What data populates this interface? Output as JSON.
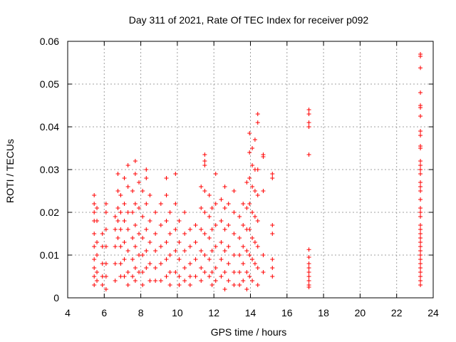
{
  "chart_data": {
    "type": "scatter",
    "title": "Day 311 of 2021, Rate Of TEC Index for receiver p092",
    "xlabel": "GPS time / hours",
    "ylabel": "ROTI / TECUs",
    "xlim": [
      4,
      24
    ],
    "ylim": [
      0,
      0.06
    ],
    "x_ticks": [
      "4",
      "6",
      "8",
      "10",
      "12",
      "14",
      "16",
      "18",
      "20",
      "22",
      "24"
    ],
    "y_ticks": [
      "0",
      "0.01",
      "0.02",
      "0.03",
      "0.04",
      "0.05",
      "0.06"
    ],
    "grid": true,
    "marker": "+",
    "color": "#ff0000",
    "series": [
      {
        "points": [
          [
            5.45,
            0.024
          ],
          [
            5.45,
            0.022
          ],
          [
            5.45,
            0.02
          ],
          [
            5.45,
            0.018
          ],
          [
            5.45,
            0.015
          ],
          [
            5.45,
            0.012
          ],
          [
            5.45,
            0.009
          ],
          [
            5.45,
            0.007
          ],
          [
            5.45,
            0.005
          ],
          [
            5.45,
            0.003
          ],
          [
            5.6,
            0.021
          ],
          [
            5.6,
            0.018
          ],
          [
            5.6,
            0.013
          ],
          [
            5.6,
            0.01
          ],
          [
            5.6,
            0.006
          ],
          [
            5.6,
            0.004
          ],
          [
            5.9,
            0.015
          ],
          [
            5.9,
            0.012
          ],
          [
            5.9,
            0.008
          ],
          [
            5.9,
            0.005
          ],
          [
            5.9,
            0.003
          ],
          [
            6.1,
            0.022
          ],
          [
            6.1,
            0.02
          ],
          [
            6.1,
            0.016
          ],
          [
            6.1,
            0.012
          ],
          [
            6.1,
            0.008
          ],
          [
            6.1,
            0.005
          ],
          [
            6.1,
            0.002
          ],
          [
            6.6,
            0.019
          ],
          [
            6.6,
            0.016
          ],
          [
            6.6,
            0.012
          ],
          [
            6.6,
            0.008
          ],
          [
            6.6,
            0.004
          ],
          [
            6.75,
            0.029
          ],
          [
            6.75,
            0.025
          ],
          [
            6.75,
            0.021
          ],
          [
            6.75,
            0.018
          ],
          [
            6.75,
            0.014
          ],
          [
            6.9,
            0.024
          ],
          [
            6.9,
            0.02
          ],
          [
            6.9,
            0.016
          ],
          [
            6.9,
            0.012
          ],
          [
            6.9,
            0.008
          ],
          [
            6.9,
            0.005
          ],
          [
            7.1,
            0.028
          ],
          [
            7.1,
            0.022
          ],
          [
            7.1,
            0.018
          ],
          [
            7.1,
            0.013
          ],
          [
            7.1,
            0.009
          ],
          [
            7.1,
            0.005
          ],
          [
            7.3,
            0.031
          ],
          [
            7.3,
            0.026
          ],
          [
            7.3,
            0.02
          ],
          [
            7.3,
            0.016
          ],
          [
            7.3,
            0.011
          ],
          [
            7.3,
            0.006
          ],
          [
            7.3,
            0.003
          ],
          [
            7.55,
            0.025
          ],
          [
            7.55,
            0.02
          ],
          [
            7.55,
            0.014
          ],
          [
            7.55,
            0.009
          ],
          [
            7.55,
            0.005
          ],
          [
            7.7,
            0.032
          ],
          [
            7.7,
            0.029
          ],
          [
            7.7,
            0.022
          ],
          [
            7.7,
            0.017
          ],
          [
            7.7,
            0.012
          ],
          [
            7.7,
            0.007
          ],
          [
            7.7,
            0.004
          ],
          [
            7.9,
            0.027
          ],
          [
            7.9,
            0.021
          ],
          [
            7.9,
            0.015
          ],
          [
            7.9,
            0.01
          ],
          [
            7.9,
            0.006
          ],
          [
            8.1,
            0.025
          ],
          [
            8.1,
            0.019
          ],
          [
            8.1,
            0.014
          ],
          [
            8.1,
            0.01
          ],
          [
            8.1,
            0.006
          ],
          [
            8.1,
            0.003
          ],
          [
            8.3,
            0.03
          ],
          [
            8.3,
            0.028
          ],
          [
            8.3,
            0.022
          ],
          [
            8.3,
            0.016
          ],
          [
            8.3,
            0.011
          ],
          [
            8.3,
            0.007
          ],
          [
            8.5,
            0.024
          ],
          [
            8.5,
            0.018
          ],
          [
            8.5,
            0.013
          ],
          [
            8.5,
            0.008
          ],
          [
            8.5,
            0.004
          ],
          [
            8.8,
            0.02
          ],
          [
            8.8,
            0.015
          ],
          [
            8.8,
            0.011
          ],
          [
            8.8,
            0.007
          ],
          [
            8.8,
            0.004
          ],
          [
            9.1,
            0.022
          ],
          [
            9.1,
            0.017
          ],
          [
            9.1,
            0.012
          ],
          [
            9.1,
            0.008
          ],
          [
            9.1,
            0.004
          ],
          [
            9.4,
            0.028
          ],
          [
            9.4,
            0.024
          ],
          [
            9.4,
            0.018
          ],
          [
            9.4,
            0.013
          ],
          [
            9.4,
            0.009
          ],
          [
            9.4,
            0.005
          ],
          [
            9.6,
            0.02
          ],
          [
            9.6,
            0.015
          ],
          [
            9.6,
            0.01
          ],
          [
            9.6,
            0.006
          ],
          [
            9.6,
            0.003
          ],
          [
            9.9,
            0.029
          ],
          [
            9.9,
            0.022
          ],
          [
            9.9,
            0.016
          ],
          [
            9.9,
            0.011
          ],
          [
            9.9,
            0.006
          ],
          [
            10.1,
            0.018
          ],
          [
            10.1,
            0.013
          ],
          [
            10.1,
            0.009
          ],
          [
            10.1,
            0.005
          ],
          [
            10.1,
            0.003
          ],
          [
            10.4,
            0.02
          ],
          [
            10.4,
            0.015
          ],
          [
            10.4,
            0.011
          ],
          [
            10.4,
            0.007
          ],
          [
            10.4,
            0.004
          ],
          [
            10.7,
            0.016
          ],
          [
            10.7,
            0.012
          ],
          [
            10.7,
            0.008
          ],
          [
            10.7,
            0.005
          ],
          [
            10.7,
            0.003
          ],
          [
            11.0,
            0.017
          ],
          [
            11.0,
            0.013
          ],
          [
            11.0,
            0.009
          ],
          [
            11.0,
            0.005
          ],
          [
            11.3,
            0.026
          ],
          [
            11.3,
            0.021
          ],
          [
            11.3,
            0.016
          ],
          [
            11.3,
            0.011
          ],
          [
            11.3,
            0.007
          ],
          [
            11.3,
            0.004
          ],
          [
            11.5,
            0.0335
          ],
          [
            11.5,
            0.032
          ],
          [
            11.5,
            0.031
          ],
          [
            11.5,
            0.025
          ],
          [
            11.5,
            0.02
          ],
          [
            11.5,
            0.015
          ],
          [
            11.5,
            0.01
          ],
          [
            11.5,
            0.006
          ],
          [
            11.75,
            0.024
          ],
          [
            11.75,
            0.019
          ],
          [
            11.75,
            0.014
          ],
          [
            11.75,
            0.009
          ],
          [
            11.75,
            0.005
          ],
          [
            11.9,
            0.021
          ],
          [
            11.9,
            0.016
          ],
          [
            11.9,
            0.011
          ],
          [
            11.9,
            0.006
          ],
          [
            11.9,
            0.003
          ],
          [
            12.1,
            0.029
          ],
          [
            12.1,
            0.022
          ],
          [
            12.1,
            0.017
          ],
          [
            12.1,
            0.012
          ],
          [
            12.1,
            0.007
          ],
          [
            12.1,
            0.004
          ],
          [
            12.4,
            0.023
          ],
          [
            12.4,
            0.018
          ],
          [
            12.4,
            0.013
          ],
          [
            12.4,
            0.009
          ],
          [
            12.4,
            0.005
          ],
          [
            12.6,
            0.026
          ],
          [
            12.6,
            0.021
          ],
          [
            12.6,
            0.016
          ],
          [
            12.6,
            0.011
          ],
          [
            12.6,
            0.006
          ],
          [
            12.6,
            0.002
          ],
          [
            12.8,
            0.022
          ],
          [
            12.8,
            0.017
          ],
          [
            12.8,
            0.012
          ],
          [
            12.8,
            0.008
          ],
          [
            12.8,
            0.004
          ],
          [
            13.1,
            0.025
          ],
          [
            13.1,
            0.02
          ],
          [
            13.1,
            0.015
          ],
          [
            13.1,
            0.01
          ],
          [
            13.1,
            0.006
          ],
          [
            13.1,
            0.003
          ],
          [
            13.4,
            0.019
          ],
          [
            13.4,
            0.014
          ],
          [
            13.4,
            0.01
          ],
          [
            13.4,
            0.006
          ],
          [
            13.4,
            0.003
          ],
          [
            13.6,
            0.022
          ],
          [
            13.6,
            0.017
          ],
          [
            13.6,
            0.012
          ],
          [
            13.6,
            0.008
          ],
          [
            13.6,
            0.004
          ],
          [
            13.8,
            0.027
          ],
          [
            13.8,
            0.021
          ],
          [
            13.8,
            0.016
          ],
          [
            13.8,
            0.011
          ],
          [
            13.8,
            0.006
          ],
          [
            13.8,
            0.002
          ],
          [
            13.95,
            0.0385
          ],
          [
            13.95,
            0.034
          ],
          [
            13.95,
            0.028
          ],
          [
            13.95,
            0.022
          ],
          [
            13.95,
            0.016
          ],
          [
            13.95,
            0.01
          ],
          [
            13.95,
            0.005
          ],
          [
            14.1,
            0.035
          ],
          [
            14.1,
            0.031
          ],
          [
            14.1,
            0.026
          ],
          [
            14.1,
            0.02
          ],
          [
            14.1,
            0.014
          ],
          [
            14.1,
            0.009
          ],
          [
            14.1,
            0.004
          ],
          [
            14.25,
            0.037
          ],
          [
            14.25,
            0.03
          ],
          [
            14.25,
            0.025
          ],
          [
            14.25,
            0.019
          ],
          [
            14.25,
            0.013
          ],
          [
            14.25,
            0.008
          ],
          [
            14.4,
            0.043
          ],
          [
            14.4,
            0.041
          ],
          [
            14.4,
            0.03
          ],
          [
            14.4,
            0.024
          ],
          [
            14.4,
            0.018
          ],
          [
            14.4,
            0.012
          ],
          [
            14.4,
            0.007
          ],
          [
            14.4,
            0.003
          ],
          [
            14.7,
            0.0335
          ],
          [
            14.7,
            0.033
          ],
          [
            14.7,
            0.025
          ],
          [
            14.7,
            0.01
          ],
          [
            14.7,
            0.006
          ],
          [
            15.2,
            0.029
          ],
          [
            15.2,
            0.028
          ],
          [
            15.2,
            0.017
          ],
          [
            15.2,
            0.015
          ],
          [
            15.2,
            0.009
          ],
          [
            15.2,
            0.007
          ],
          [
            15.2,
            0.005
          ],
          [
            17.2,
            0.044
          ],
          [
            17.2,
            0.043
          ],
          [
            17.2,
            0.041
          ],
          [
            17.2,
            0.04
          ],
          [
            17.2,
            0.0335
          ],
          [
            17.2,
            0.0113
          ],
          [
            17.2,
            0.0095
          ],
          [
            17.2,
            0.008
          ],
          [
            17.2,
            0.007
          ],
          [
            17.2,
            0.006
          ],
          [
            17.2,
            0.005
          ],
          [
            17.2,
            0.004
          ],
          [
            17.2,
            0.003
          ],
          [
            17.2,
            0.0025
          ],
          [
            23.3,
            0.057
          ],
          [
            23.3,
            0.0565
          ],
          [
            23.3,
            0.0538
          ],
          [
            23.3,
            0.048
          ],
          [
            23.3,
            0.045
          ],
          [
            23.3,
            0.0445
          ],
          [
            23.3,
            0.0425
          ],
          [
            23.3,
            0.039
          ],
          [
            23.3,
            0.038
          ],
          [
            23.3,
            0.0355
          ],
          [
            23.3,
            0.035
          ],
          [
            23.3,
            0.032
          ],
          [
            23.3,
            0.031
          ],
          [
            23.3,
            0.03
          ],
          [
            23.3,
            0.029
          ],
          [
            23.3,
            0.027
          ],
          [
            23.3,
            0.026
          ],
          [
            23.3,
            0.025
          ],
          [
            23.3,
            0.023
          ],
          [
            23.3,
            0.021
          ],
          [
            23.3,
            0.02
          ],
          [
            23.3,
            0.019
          ],
          [
            23.3,
            0.017
          ],
          [
            23.3,
            0.016
          ],
          [
            23.3,
            0.015
          ],
          [
            23.3,
            0.014
          ],
          [
            23.3,
            0.013
          ],
          [
            23.3,
            0.012
          ],
          [
            23.3,
            0.011
          ],
          [
            23.3,
            0.01
          ],
          [
            23.3,
            0.009
          ],
          [
            23.3,
            0.008
          ],
          [
            23.3,
            0.007
          ],
          [
            23.3,
            0.006
          ],
          [
            23.3,
            0.005
          ],
          [
            23.3,
            0.004
          ],
          [
            23.3,
            0.003
          ]
        ]
      }
    ]
  }
}
